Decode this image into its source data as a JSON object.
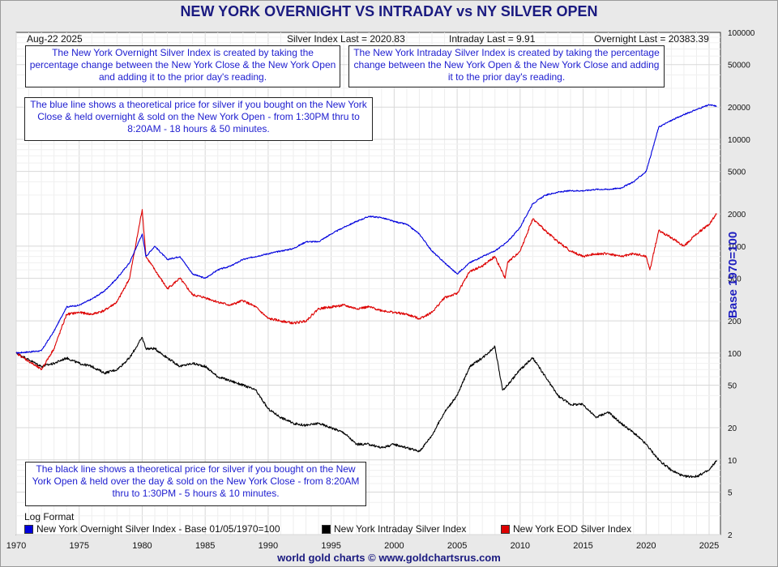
{
  "title": "NEW YORK OVERNIGHT VS INTRADAY vs NY SILVER OPEN",
  "date": "Aug-22  2025",
  "readouts": {
    "silver_index": "Silver Index Last = 2020.83",
    "intraday": "Intraday Last = 9.91",
    "overnight": "Overnight Last = 20383.39"
  },
  "notes": {
    "overnight_def": "The New York Overnight Silver Index is created by taking the percentage change between the New York Close & the New York Open and adding it to the prior day's reading.",
    "intraday_def": "The New York Intraday Silver Index is created by taking the percentage change between the New York Open & the New York Close and adding it to the prior day's reading.",
    "blue_line": "The blue line shows a theoretical price for silver if you bought on the New York Close & held overnight & sold on the New York Open - from 1:30PM thru to 8:20AM - 18 hours & 50 minutes.",
    "black_line": "The black line shows a theoretical price for silver if you bought on the New York Open & held over the day & sold on the New York Close - from 8:20AM thru to 1:30PM - 5 hours & 10 minutes."
  },
  "log_format": "Log Format",
  "footer": "world gold charts © www.goldchartsrus.com",
  "colors": {
    "overnight": "#0000dd",
    "intraday": "#000000",
    "eod": "#dd0000"
  },
  "chart_data": {
    "type": "line",
    "scale": "log",
    "title": "NEW YORK OVERNIGHT VS INTRADAY vs NY SILVER OPEN",
    "ylabel": "Base 1970=100",
    "ylim": [
      2,
      100000
    ],
    "xlim": [
      1970,
      2025.9
    ],
    "x_ticks": [
      "1970",
      "1975",
      "1980",
      "1985",
      "1990",
      "1995",
      "2000",
      "2005",
      "2010",
      "2015",
      "2020",
      "2025"
    ],
    "y_ticks": [
      "100000",
      "50000",
      "20000",
      "10000",
      "5000",
      "2000",
      "1000",
      "500",
      "200",
      "100",
      "50",
      "20",
      "10",
      "5",
      "2"
    ],
    "legend": [
      "New York Overnight Silver Index - Base 01/05/1970=100",
      "New York Intraday Silver Index",
      "New York EOD Silver Index"
    ],
    "series": [
      {
        "name": "New York Overnight Silver Index - Base 01/05/1970=100",
        "x": [
          1970,
          1972,
          1973,
          1974,
          1975,
          1976,
          1977,
          1978,
          1979,
          1980,
          1980.3,
          1981,
          1982,
          1983,
          1984,
          1985,
          1986,
          1987,
          1988,
          1989,
          1990,
          1991,
          1992,
          1993,
          1994,
          1995,
          1996,
          1997,
          1998,
          1999,
          2000,
          2001,
          2002,
          2003,
          2004,
          2005,
          2006,
          2007,
          2008,
          2009,
          2010,
          2011,
          2012,
          2013,
          2014,
          2015,
          2016,
          2017,
          2018,
          2019,
          2020,
          2020.5,
          2021,
          2022,
          2023,
          2024,
          2025,
          2025.6
        ],
        "values": [
          100,
          105,
          160,
          270,
          280,
          320,
          380,
          500,
          700,
          1300,
          800,
          1000,
          750,
          800,
          550,
          500,
          600,
          650,
          750,
          800,
          850,
          900,
          950,
          1100,
          1100,
          1300,
          1500,
          1700,
          1900,
          1850,
          1700,
          1600,
          1300,
          900,
          700,
          550,
          700,
          800,
          900,
          1100,
          1500,
          2500,
          3000,
          3200,
          3300,
          3300,
          3400,
          3400,
          3500,
          4000,
          5000,
          8000,
          13000,
          15000,
          17000,
          19000,
          21000,
          20383
        ]
      },
      {
        "name": "New York Intraday Silver Index",
        "x": [
          1970,
          1972,
          1973,
          1974,
          1975,
          1976,
          1977,
          1978,
          1979,
          1980,
          1980.3,
          1981,
          1982,
          1983,
          1984,
          1985,
          1986,
          1987,
          1988,
          1989,
          1990,
          1991,
          1992,
          1993,
          1994,
          1995,
          1996,
          1997,
          1998,
          1999,
          2000,
          2001,
          2002,
          2003,
          2004,
          2005,
          2006,
          2007,
          2008,
          2008.6,
          2009,
          2010,
          2011,
          2012,
          2013,
          2014,
          2015,
          2016,
          2017,
          2018,
          2019,
          2020,
          2021,
          2022,
          2023,
          2024,
          2025,
          2025.6
        ],
        "values": [
          100,
          75,
          80,
          90,
          80,
          75,
          65,
          70,
          90,
          140,
          110,
          110,
          90,
          75,
          80,
          75,
          60,
          55,
          50,
          45,
          30,
          25,
          22,
          21,
          22,
          20,
          18,
          14,
          14,
          13,
          14,
          13,
          12,
          17,
          28,
          40,
          75,
          90,
          115,
          45,
          50,
          70,
          90,
          60,
          40,
          33,
          33,
          25,
          28,
          22,
          18,
          14,
          10,
          8,
          7,
          7,
          8,
          9.91
        ]
      },
      {
        "name": "New York EOD Silver Index",
        "x": [
          1970,
          1972,
          1973,
          1974,
          1975,
          1976,
          1977,
          1978,
          1979,
          1980,
          1980.3,
          1981,
          1982,
          1983,
          1984,
          1985,
          1986,
          1987,
          1988,
          1989,
          1990,
          1991,
          1992,
          1993,
          1994,
          1995,
          1996,
          1997,
          1998,
          1999,
          2000,
          2001,
          2002,
          2003,
          2004,
          2005,
          2006,
          2007,
          2008,
          2008.8,
          2009,
          2010,
          2011,
          2012,
          2013,
          2014,
          2015,
          2016,
          2017,
          2018,
          2019,
          2020,
          2020.3,
          2021,
          2022,
          2023,
          2024,
          2025,
          2025.6
        ],
        "values": [
          100,
          70,
          110,
          230,
          240,
          230,
          250,
          300,
          500,
          2200,
          800,
          600,
          400,
          500,
          350,
          330,
          300,
          280,
          310,
          270,
          210,
          200,
          190,
          200,
          260,
          270,
          280,
          260,
          270,
          250,
          240,
          230,
          210,
          240,
          330,
          360,
          580,
          650,
          800,
          500,
          700,
          900,
          1800,
          1400,
          1100,
          900,
          800,
          850,
          850,
          800,
          850,
          800,
          600,
          1400,
          1200,
          1000,
          1300,
          1600,
          2020
        ]
      }
    ]
  }
}
